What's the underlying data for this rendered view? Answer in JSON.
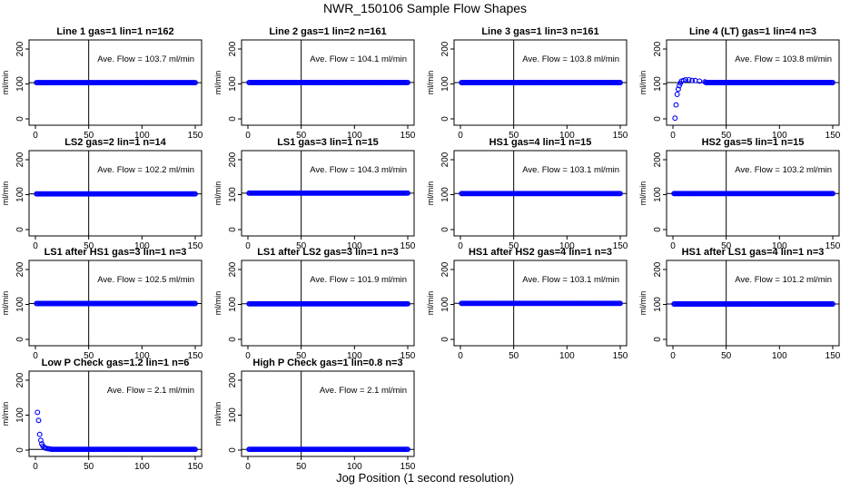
{
  "figure": {
    "title": "NWR_150106  Sample Flow Shapes",
    "xlabel": "Jog Position (1 second resolution)"
  },
  "chart_data": [
    {
      "type": "scatter",
      "title": "Line 1 gas=1 lin=1 n=162",
      "ylabel": "ml/min",
      "annotation": "Ave. Flow = 103.7  ml/min",
      "xlim": [
        0,
        150
      ],
      "ylim": [
        0,
        200
      ],
      "x_ticks": [
        0,
        50,
        100,
        150
      ],
      "y_ticks": [
        0,
        100,
        200
      ],
      "vline_x": 50,
      "hline_y": 103.7,
      "series": [
        {
          "shape": "flat",
          "level": 103.7,
          "x": [
            1,
            150
          ]
        }
      ]
    },
    {
      "type": "scatter",
      "title": "Line 2 gas=1 lin=2 n=161",
      "ylabel": "ml/min",
      "annotation": "Ave. Flow = 104.1  ml/min",
      "xlim": [
        0,
        150
      ],
      "ylim": [
        0,
        200
      ],
      "x_ticks": [
        0,
        50,
        100,
        150
      ],
      "y_ticks": [
        0,
        100,
        200
      ],
      "vline_x": 50,
      "hline_y": 104.1,
      "series": [
        {
          "shape": "flat",
          "level": 104.1,
          "x": [
            1,
            150
          ]
        }
      ]
    },
    {
      "type": "scatter",
      "title": "Line 3 gas=1 lin=3 n=161",
      "ylabel": "ml/min",
      "annotation": "Ave. Flow = 103.8  ml/min",
      "xlim": [
        0,
        150
      ],
      "ylim": [
        0,
        200
      ],
      "x_ticks": [
        0,
        50,
        100,
        150
      ],
      "y_ticks": [
        0,
        100,
        200
      ],
      "vline_x": 50,
      "hline_y": 103.8,
      "series": [
        {
          "shape": "flat",
          "level": 103.8,
          "x": [
            1,
            150
          ]
        }
      ]
    },
    {
      "type": "scatter",
      "title": "Line 4 (LT) gas=1 lin=4 n=3",
      "ylabel": "ml/min",
      "annotation": "Ave. Flow = 103.8  ml/min",
      "xlim": [
        0,
        150
      ],
      "ylim": [
        0,
        200
      ],
      "x_ticks": [
        0,
        50,
        100,
        150
      ],
      "y_ticks": [
        0,
        100,
        200
      ],
      "vline_x": 50,
      "hline_y": 103.8,
      "series": [
        {
          "shape": "rise",
          "level": 103.8,
          "x": [
            1,
            150
          ],
          "start": [
            [
              2,
              2
            ],
            [
              3,
              40
            ],
            [
              4,
              70
            ],
            [
              5,
              85
            ],
            [
              6,
              95
            ],
            [
              7,
              102
            ],
            [
              8,
              108
            ],
            [
              10,
              110
            ],
            [
              12,
              112
            ],
            [
              15,
              112
            ],
            [
              18,
              110
            ],
            [
              21,
              110
            ],
            [
              25,
              108
            ],
            [
              30,
              106
            ]
          ]
        }
      ]
    },
    {
      "type": "scatter",
      "title": "LS2 gas=2 lin=1 n=14",
      "ylabel": "ml/min",
      "annotation": "Ave. Flow = 102.2  ml/min",
      "xlim": [
        0,
        150
      ],
      "ylim": [
        0,
        200
      ],
      "x_ticks": [
        0,
        50,
        100,
        150
      ],
      "y_ticks": [
        0,
        100,
        200
      ],
      "vline_x": 50,
      "hline_y": 102.2,
      "series": [
        {
          "shape": "flat",
          "level": 102.2,
          "x": [
            1,
            150
          ]
        }
      ]
    },
    {
      "type": "scatter",
      "title": "LS1 gas=3 lin=1 n=15",
      "ylabel": "ml/min",
      "annotation": "Ave. Flow = 104.3  ml/min",
      "xlim": [
        0,
        150
      ],
      "ylim": [
        0,
        200
      ],
      "x_ticks": [
        0,
        50,
        100,
        150
      ],
      "y_ticks": [
        0,
        100,
        200
      ],
      "vline_x": 50,
      "hline_y": 104.3,
      "series": [
        {
          "shape": "flat",
          "level": 104.3,
          "x": [
            1,
            150
          ]
        }
      ]
    },
    {
      "type": "scatter",
      "title": "HS1 gas=4 lin=1 n=15",
      "ylabel": "ml/min",
      "annotation": "Ave. Flow = 103.1  ml/min",
      "xlim": [
        0,
        150
      ],
      "ylim": [
        0,
        200
      ],
      "x_ticks": [
        0,
        50,
        100,
        150
      ],
      "y_ticks": [
        0,
        100,
        200
      ],
      "vline_x": 50,
      "hline_y": 103.1,
      "series": [
        {
          "shape": "flat",
          "level": 103.1,
          "x": [
            1,
            150
          ]
        }
      ]
    },
    {
      "type": "scatter",
      "title": "HS2 gas=5 lin=1 n=15",
      "ylabel": "ml/min",
      "annotation": "Ave. Flow = 103.2  ml/min",
      "xlim": [
        0,
        150
      ],
      "ylim": [
        0,
        200
      ],
      "x_ticks": [
        0,
        50,
        100,
        150
      ],
      "y_ticks": [
        0,
        100,
        200
      ],
      "vline_x": 50,
      "hline_y": 103.2,
      "series": [
        {
          "shape": "flat",
          "level": 103.2,
          "x": [
            1,
            150
          ]
        }
      ]
    },
    {
      "type": "scatter",
      "title": "LS1 after HS1 gas=3 lin=1 n=3",
      "ylabel": "ml/min",
      "annotation": "Ave. Flow = 102.5  ml/min",
      "xlim": [
        0,
        150
      ],
      "ylim": [
        0,
        200
      ],
      "x_ticks": [
        0,
        50,
        100,
        150
      ],
      "y_ticks": [
        0,
        100,
        200
      ],
      "vline_x": 50,
      "hline_y": 102.5,
      "series": [
        {
          "shape": "flat",
          "level": 102.5,
          "x": [
            1,
            150
          ]
        }
      ]
    },
    {
      "type": "scatter",
      "title": "LS1 after LS2 gas=3 lin=1 n=3",
      "ylabel": "ml/min",
      "annotation": "Ave. Flow = 101.9  ml/min",
      "xlim": [
        0,
        150
      ],
      "ylim": [
        0,
        200
      ],
      "x_ticks": [
        0,
        50,
        100,
        150
      ],
      "y_ticks": [
        0,
        100,
        200
      ],
      "vline_x": 50,
      "hline_y": 101.9,
      "series": [
        {
          "shape": "flat",
          "level": 101.9,
          "x": [
            1,
            150
          ]
        }
      ]
    },
    {
      "type": "scatter",
      "title": "HS1 after HS2 gas=4 lin=1 n=3",
      "ylabel": "ml/min",
      "annotation": "Ave. Flow = 103.1  ml/min",
      "xlim": [
        0,
        150
      ],
      "ylim": [
        0,
        200
      ],
      "x_ticks": [
        0,
        50,
        100,
        150
      ],
      "y_ticks": [
        0,
        100,
        200
      ],
      "vline_x": 50,
      "hline_y": 103.1,
      "series": [
        {
          "shape": "flat",
          "level": 103.1,
          "x": [
            1,
            150
          ]
        }
      ]
    },
    {
      "type": "scatter",
      "title": "HS1 after LS1 gas=4 lin=1 n=3",
      "ylabel": "ml/min",
      "annotation": "Ave. Flow = 101.2  ml/min",
      "xlim": [
        0,
        150
      ],
      "ylim": [
        0,
        200
      ],
      "x_ticks": [
        0,
        50,
        100,
        150
      ],
      "y_ticks": [
        0,
        100,
        200
      ],
      "vline_x": 50,
      "hline_y": 101.2,
      "series": [
        {
          "shape": "flat",
          "level": 101.2,
          "x": [
            1,
            150
          ]
        }
      ]
    },
    {
      "type": "scatter",
      "title": "Low P Check gas=1.2 lin=1 n=6",
      "ylabel": "ml/min",
      "annotation": "Ave. Flow =  2.1  ml/min",
      "xlim": [
        0,
        150
      ],
      "ylim": [
        0,
        200
      ],
      "x_ticks": [
        0,
        50,
        100,
        150
      ],
      "y_ticks": [
        0,
        100,
        200
      ],
      "vline_x": 50,
      "hline_y": 2.1,
      "series": [
        {
          "shape": "decay",
          "level": 2.1,
          "x": [
            1,
            150
          ],
          "start": [
            [
              2,
              108
            ],
            [
              3,
              85
            ],
            [
              4,
              45
            ],
            [
              5,
              28
            ],
            [
              6,
              18
            ],
            [
              7,
              12
            ],
            [
              8,
              8
            ],
            [
              9,
              6
            ],
            [
              10,
              5
            ],
            [
              12,
              4
            ],
            [
              14,
              3
            ]
          ]
        }
      ]
    },
    {
      "type": "scatter",
      "title": "High P Check gas=1 lin=0.8 n=3",
      "ylabel": "ml/min",
      "annotation": "Ave. Flow =  2.1  ml/min",
      "xlim": [
        0,
        150
      ],
      "ylim": [
        0,
        200
      ],
      "x_ticks": [
        0,
        50,
        100,
        150
      ],
      "y_ticks": [
        0,
        100,
        200
      ],
      "vline_x": 50,
      "hline_y": 2.1,
      "series": [
        {
          "shape": "flat",
          "level": 2.1,
          "x": [
            1,
            150
          ]
        }
      ]
    }
  ],
  "style": {
    "point_color": "#0000ff",
    "line_color": "#000000",
    "background": "#ffffff"
  }
}
